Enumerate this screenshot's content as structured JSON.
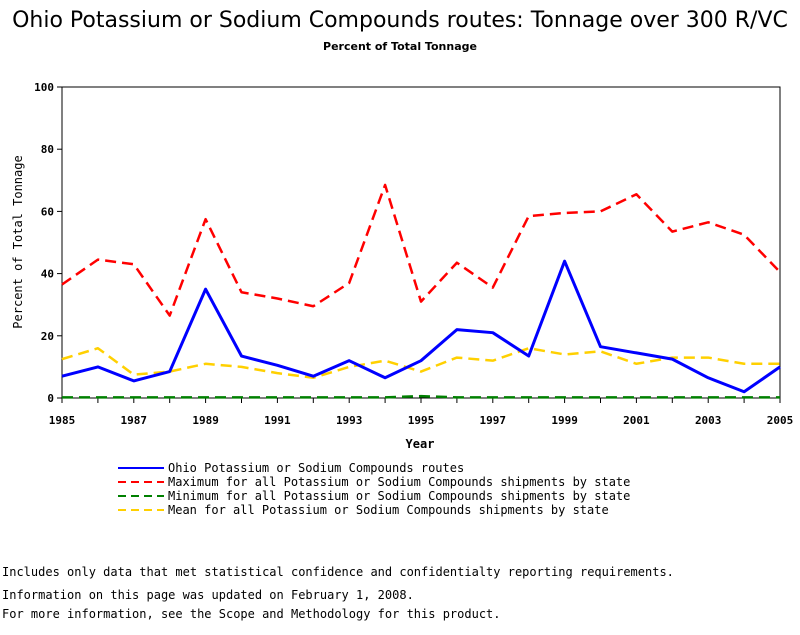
{
  "chart_data": {
    "type": "line",
    "title": "Ohio Potassium or Sodium Compounds routes: Tonnage over 300 R/VC",
    "subtitle": "Percent of Total Tonnage",
    "xlabel": "Year",
    "ylabel": "Percent of Total Tonnage",
    "xlim": [
      1985,
      2005
    ],
    "ylim": [
      0,
      100
    ],
    "x_ticks": [
      "1985",
      "1987",
      "1989",
      "1991",
      "1993",
      "1995",
      "1997",
      "1999",
      "2001",
      "2003",
      "2005"
    ],
    "y_ticks": [
      "0",
      "20",
      "40",
      "60",
      "80",
      "100"
    ],
    "grid": false,
    "x": [
      1985,
      1986,
      1987,
      1988,
      1989,
      1990,
      1991,
      1992,
      1993,
      1994,
      1995,
      1996,
      1997,
      1998,
      1999,
      2000,
      2001,
      2002,
      2003,
      2004,
      2005
    ],
    "series": [
      {
        "name": "Ohio Potassium or Sodium Compounds routes",
        "color": "#0000ff",
        "dash": "solid",
        "values": [
          7,
          10,
          5.5,
          8.5,
          35,
          13.5,
          10.5,
          7,
          12,
          6.5,
          12,
          22,
          21,
          13.5,
          44,
          16.5,
          14.5,
          12.5,
          6.5,
          2,
          10
        ]
      },
      {
        "name": "Maximum for all Potassium or Sodium Compounds shipments by state",
        "color": "#ff0000",
        "dash": "dashed",
        "values": [
          36.5,
          44.5,
          43,
          26.5,
          57.5,
          34,
          32,
          29.5,
          37,
          68.5,
          31,
          43.5,
          35.5,
          58.5,
          59.5,
          60,
          65.5,
          53.5,
          56.5,
          52.5,
          40.5
        ]
      },
      {
        "name": "Minimum for all Potassium or Sodium Compounds shipments by state",
        "color": "#008000",
        "dash": "dashed",
        "values": [
          0.2,
          0.2,
          0.2,
          0.2,
          0.2,
          0.2,
          0.2,
          0.2,
          0.2,
          0.2,
          0.6,
          0.2,
          0.2,
          0.2,
          0.2,
          0.2,
          0.2,
          0.2,
          0.2,
          0.2,
          0.2
        ]
      },
      {
        "name": "Mean for all Potassium or Sodium Compounds shipments by state",
        "color": "#ffd000",
        "dash": "dashed",
        "values": [
          12.5,
          16,
          7.5,
          8.5,
          11,
          10,
          8,
          6.5,
          10,
          12,
          8.5,
          13,
          12,
          16,
          14,
          15,
          11,
          13,
          13,
          11,
          11
        ]
      }
    ]
  },
  "notes": [
    "Includes only data that met statistical confidence and confidentialty reporting requirements.",
    "For more information, see the Scope and Methodology for this product."
  ],
  "updated": "Information on this page was updated on February 1, 2008."
}
